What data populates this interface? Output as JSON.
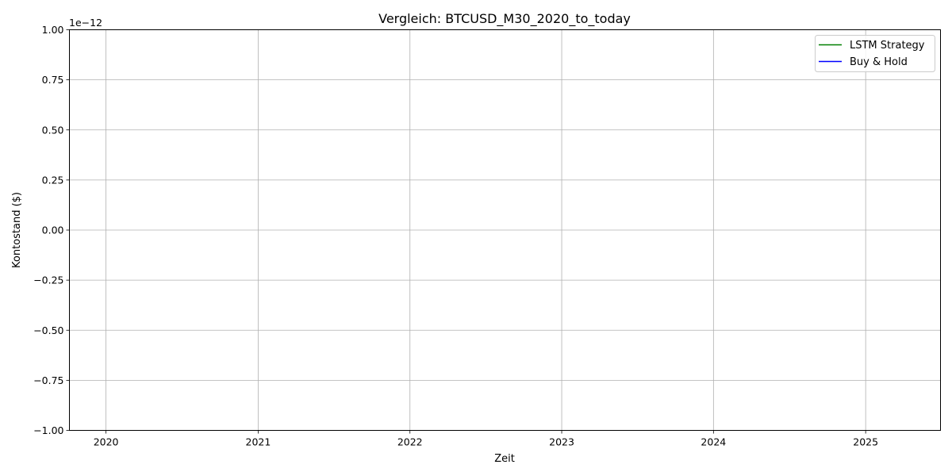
{
  "chart_data": {
    "type": "line",
    "title": "Vergleich: BTCUSD_M30_2020_to_today",
    "xlabel": "Zeit",
    "ylabel": "Kontostand ($)",
    "y_offset_label": "1e−12",
    "xlim": [
      "2019-10-05",
      "2025-06-30"
    ],
    "ylim": [
      -1.0,
      1.0
    ],
    "x_ticks": [
      {
        "date": "2020-01-01",
        "label": "2020"
      },
      {
        "date": "2021-01-01",
        "label": "2021"
      },
      {
        "date": "2022-01-01",
        "label": "2022"
      },
      {
        "date": "2023-01-01",
        "label": "2023"
      },
      {
        "date": "2024-01-01",
        "label": "2024"
      },
      {
        "date": "2025-01-01",
        "label": "2025"
      }
    ],
    "y_ticks": [
      {
        "value": 1.0,
        "label": "1.00"
      },
      {
        "value": 0.75,
        "label": "0.75"
      },
      {
        "value": 0.5,
        "label": "0.50"
      },
      {
        "value": 0.25,
        "label": "0.25"
      },
      {
        "value": 0.0,
        "label": "0.00"
      },
      {
        "value": -0.25,
        "label": "−0.25"
      },
      {
        "value": -0.5,
        "label": "−0.50"
      },
      {
        "value": -0.75,
        "label": "−0.75"
      },
      {
        "value": -1.0,
        "label": "−1.00"
      }
    ],
    "grid": true,
    "legend_position": "top-right",
    "series": [
      {
        "name": "LSTM Strategy",
        "color": "#008000",
        "points": []
      },
      {
        "name": "Buy & Hold",
        "color": "#0000ff",
        "points": []
      }
    ]
  }
}
